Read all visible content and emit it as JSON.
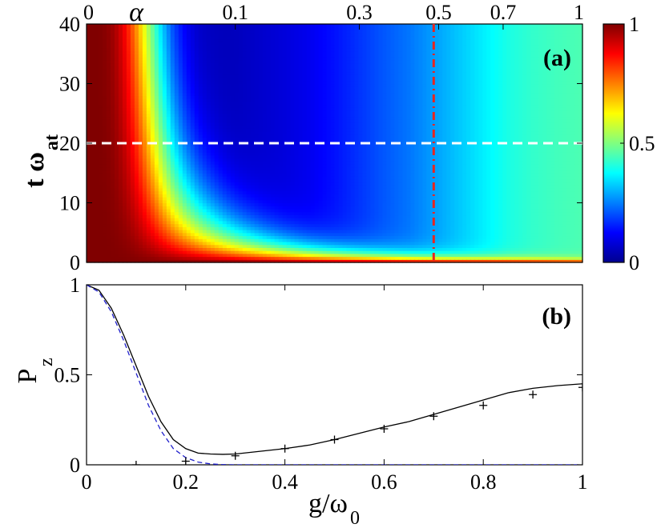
{
  "chart_data": [
    {
      "panel": "(a)",
      "type": "heatmap",
      "title": "",
      "xlabel": "",
      "ylabel_main": "t ω",
      "ylabel_sub": "at",
      "top_axis_label": "α",
      "x_range": [
        0,
        1
      ],
      "ylim": [
        0,
        40
      ],
      "yticks": [
        "0",
        "10",
        "20",
        "30",
        "40"
      ],
      "top_ticks": [
        {
          "g": 0.0,
          "label": "0"
        },
        {
          "g": 0.3,
          "label": "0.1"
        },
        {
          "g": 0.55,
          "label": "0.3"
        },
        {
          "g": 0.71,
          "label": "0.5"
        },
        {
          "g": 0.84,
          "label": "0.7"
        },
        {
          "g": 1.0,
          "label": "1"
        }
      ],
      "colorbar": {
        "min": 0,
        "max": 1,
        "ticks": [
          "0",
          "0.5",
          "1"
        ],
        "colormap": "jet"
      },
      "horizontal_line": {
        "t": 20,
        "color": "#ffffff",
        "style": "dashed"
      },
      "vertical_line": {
        "g": 0.7,
        "color": "#e8261f",
        "style": "dash-dot"
      },
      "value_model": "P_z(g,t) ≈ 1 at g=0; decays with t toward stationary value of panel (b); stationary minimum near g=0.27",
      "grid": false
    },
    {
      "panel": "(b)",
      "type": "line",
      "title": "",
      "xlabel_main": "g/ω",
      "xlabel_sub": "0",
      "ylabel_main": "P",
      "ylabel_sub": "z",
      "xlim": [
        0,
        1
      ],
      "ylim": [
        0,
        1
      ],
      "xticks": [
        "0",
        "0.2",
        "0.4",
        "0.6",
        "0.8",
        "1"
      ],
      "yticks": [
        "0",
        "0.5",
        "1"
      ],
      "grid": false,
      "series": [
        {
          "style": "solid",
          "color": "#000000",
          "x": [
            0,
            0.025,
            0.05,
            0.075,
            0.1,
            0.125,
            0.15,
            0.175,
            0.2,
            0.225,
            0.25,
            0.275,
            0.3,
            0.35,
            0.4,
            0.45,
            0.5,
            0.55,
            0.6,
            0.65,
            0.7,
            0.75,
            0.8,
            0.85,
            0.9,
            0.95,
            1.0
          ],
          "y": [
            1.0,
            0.97,
            0.87,
            0.72,
            0.55,
            0.38,
            0.24,
            0.14,
            0.09,
            0.065,
            0.06,
            0.058,
            0.06,
            0.075,
            0.09,
            0.11,
            0.14,
            0.175,
            0.21,
            0.24,
            0.28,
            0.32,
            0.36,
            0.4,
            0.425,
            0.44,
            0.45
          ]
        },
        {
          "style": "dashed",
          "color": "#1f1fcc",
          "x": [
            0,
            0.025,
            0.05,
            0.075,
            0.1,
            0.125,
            0.15,
            0.175,
            0.2,
            0.225,
            0.25,
            0.275,
            0.3,
            0.35,
            0.4,
            0.5,
            0.6,
            0.7,
            0.8,
            0.9,
            1.0
          ],
          "y": [
            1.0,
            0.96,
            0.85,
            0.69,
            0.51,
            0.33,
            0.19,
            0.09,
            0.04,
            0.015,
            0.005,
            0.001,
            0.0,
            0.0,
            0.0,
            0.0,
            0.0,
            0.0,
            0.0,
            0.0,
            0.0
          ]
        },
        {
          "style": "markers",
          "marker": "+",
          "color": "#000000",
          "x": [
            0.1,
            0.2,
            0.3,
            0.4,
            0.5,
            0.6,
            0.7,
            0.8,
            0.9,
            1.0
          ],
          "y": [
            0.0,
            0.02,
            0.05,
            0.09,
            0.14,
            0.2,
            0.27,
            0.33,
            0.39,
            0.43
          ]
        }
      ]
    }
  ]
}
